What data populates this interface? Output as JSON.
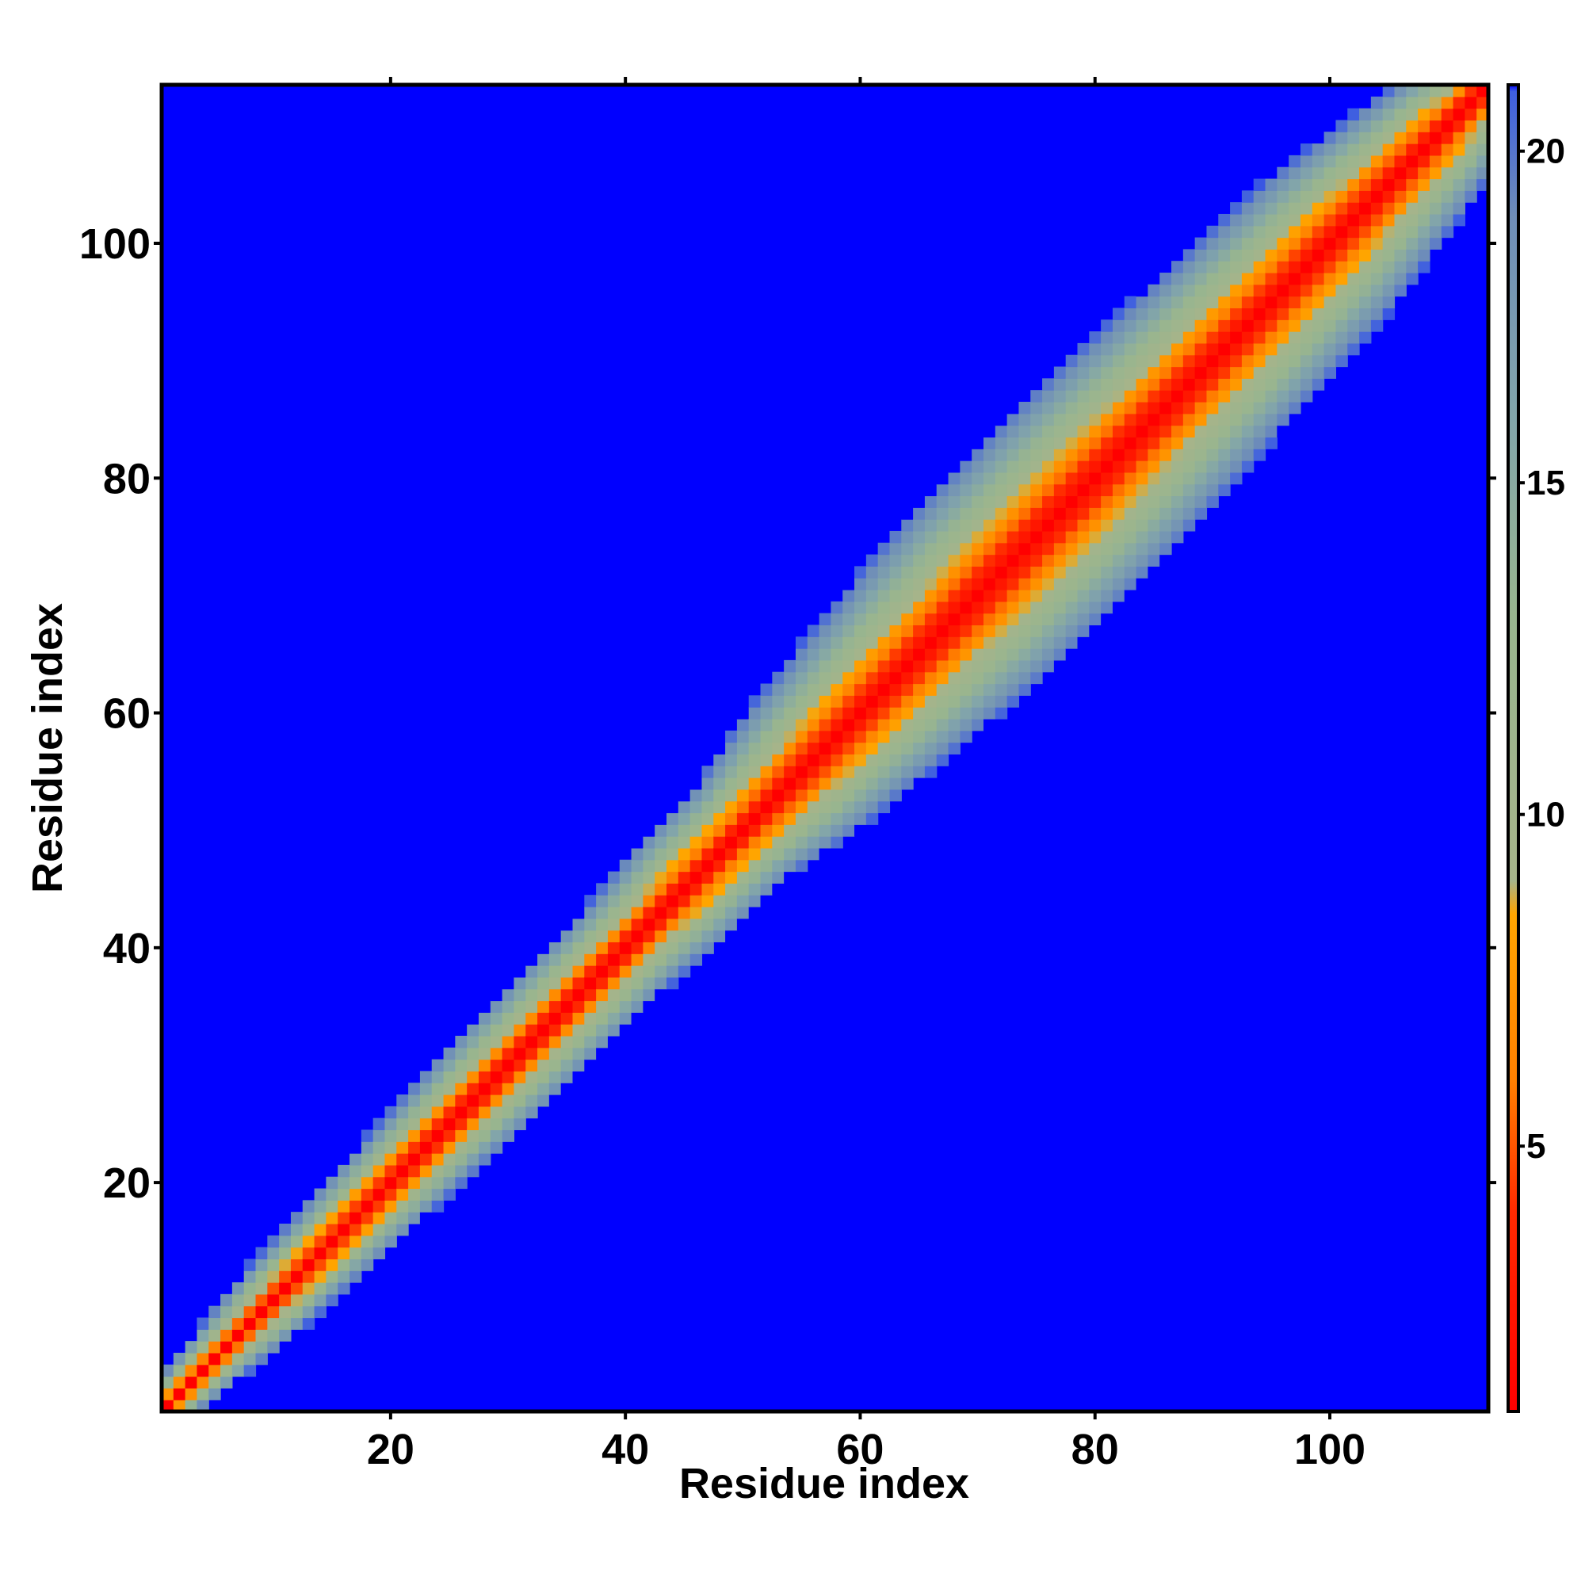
{
  "chart_data": {
    "type": "heatmap",
    "title": "",
    "xlabel": "Residue index",
    "ylabel": "Residue index",
    "x_range": [
      1,
      113
    ],
    "y_range": [
      1,
      113
    ],
    "xlim": [
      0.5,
      113.5
    ],
    "ylim": [
      0.5,
      113.5
    ],
    "x_ticks": [
      20,
      40,
      60,
      80,
      100
    ],
    "y_ticks": [
      20,
      40,
      60,
      80,
      100
    ],
    "x_tick_labels": [
      "20",
      "40",
      "60",
      "80",
      "100"
    ],
    "y_tick_labels": [
      "20",
      "40",
      "60",
      "80",
      "100"
    ],
    "value_description": "pairwise distance between residues (symmetric map, saturating at the colorbar maximum)",
    "band": {
      "description": "non-saturated values lie near the diagonal; half-width (in residues) of the region below saturation, by residue index",
      "index": [
        1,
        10,
        20,
        30,
        40,
        45,
        50,
        55,
        60,
        65,
        70,
        80,
        90,
        100,
        110,
        113
      ],
      "halfwidth": [
        3,
        5,
        6,
        7,
        7,
        8,
        8,
        10,
        11,
        12,
        13,
        13,
        12,
        11,
        8,
        6
      ],
      "distance_at_band_edge": 21,
      "distance_on_diagonal": 1
    },
    "saturation_value": 21,
    "colorbar": {
      "range": [
        1,
        21
      ],
      "ticks": [
        5,
        10,
        15,
        20
      ],
      "tick_labels": [
        "5",
        "10",
        "15",
        "20"
      ],
      "colorscale": [
        {
          "value": 1,
          "color": "#ff0000"
        },
        {
          "value": 4,
          "color": "#ff2a00"
        },
        {
          "value": 6,
          "color": "#ff8000"
        },
        {
          "value": 8.5,
          "color": "#ffa500"
        },
        {
          "value": 9,
          "color": "#a6b48a"
        },
        {
          "value": 13,
          "color": "#98b58f"
        },
        {
          "value": 16,
          "color": "#82a5aa"
        },
        {
          "value": 19,
          "color": "#6f8eb8"
        },
        {
          "value": 20.9,
          "color": "#3f5fe0"
        },
        {
          "value": 21,
          "color": "#0000ff"
        }
      ]
    },
    "grid": false,
    "background_color": "#0000ff"
  }
}
